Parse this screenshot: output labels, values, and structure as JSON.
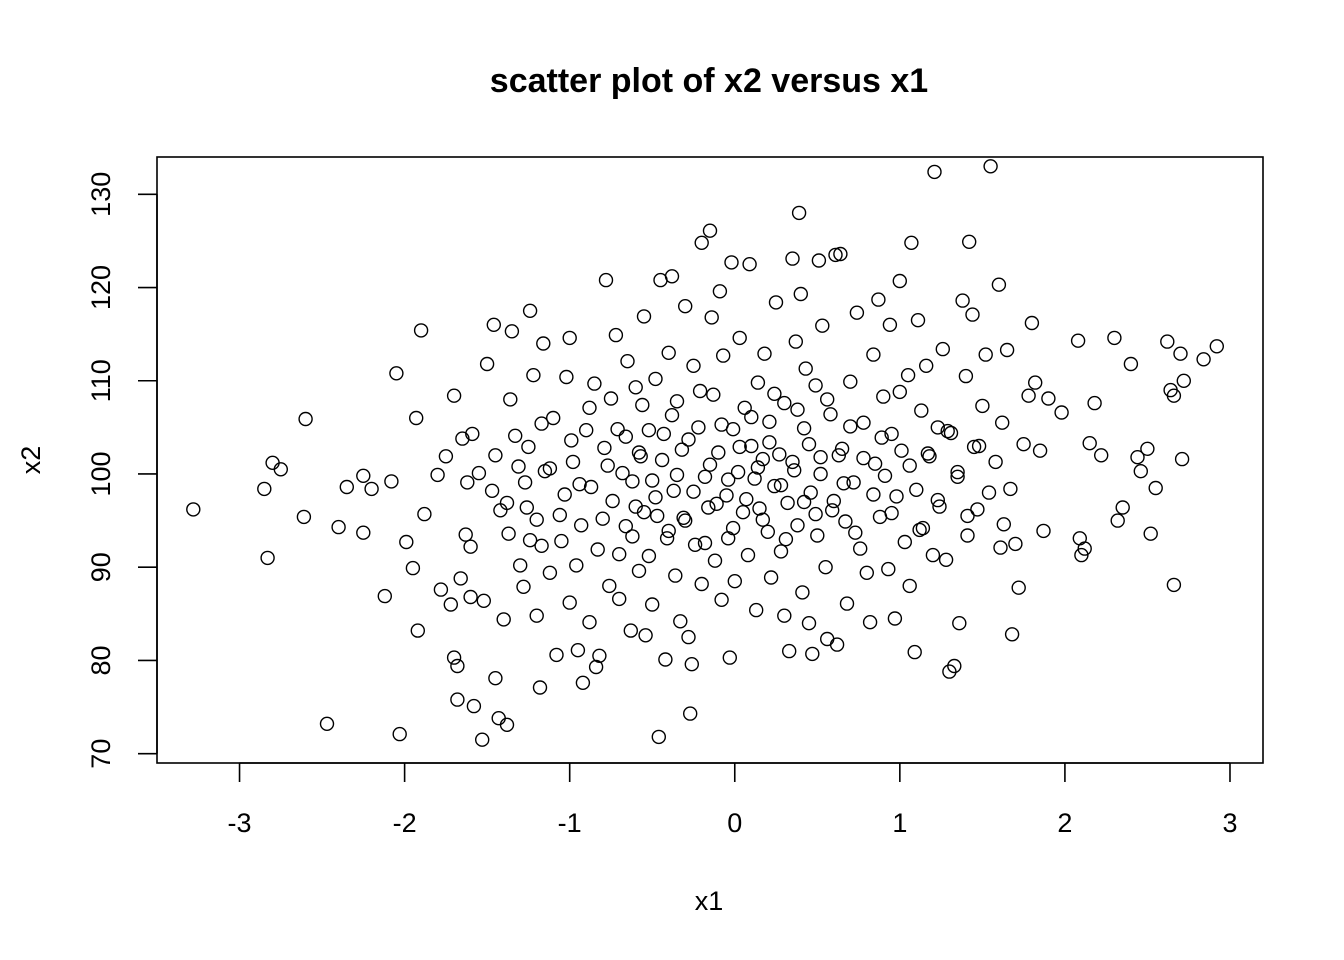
{
  "chart_data": {
    "type": "scatter",
    "title": "scatter plot of x2 versus x1",
    "xlabel": "x1",
    "ylabel": "x2",
    "xlim": [
      -3.5,
      3.2
    ],
    "ylim": [
      69,
      134
    ],
    "xticks": [
      -3,
      -2,
      -1,
      0,
      1,
      2,
      3
    ],
    "yticks": [
      70,
      80,
      90,
      100,
      110,
      120,
      130
    ],
    "marker": "open-circle",
    "grid": false,
    "legend": "none",
    "points": [
      [
        -3.28,
        96.2
      ],
      [
        -2.85,
        98.4
      ],
      [
        -2.8,
        101.2
      ],
      [
        -2.75,
        100.5
      ],
      [
        -2.83,
        91.0
      ],
      [
        -2.6,
        105.9
      ],
      [
        -2.61,
        95.4
      ],
      [
        -2.47,
        73.2
      ],
      [
        -2.4,
        94.3
      ],
      [
        -2.35,
        98.6
      ],
      [
        -2.25,
        99.8
      ],
      [
        -2.25,
        93.7
      ],
      [
        -2.2,
        98.4
      ],
      [
        -2.12,
        86.9
      ],
      [
        -2.08,
        99.2
      ],
      [
        -2.05,
        110.8
      ],
      [
        -2.03,
        72.1
      ],
      [
        -1.99,
        92.7
      ],
      [
        -1.95,
        89.9
      ],
      [
        -1.93,
        106.0
      ],
      [
        -1.92,
        83.2
      ],
      [
        -1.9,
        115.4
      ],
      [
        -1.88,
        95.7
      ],
      [
        -1.8,
        99.9
      ],
      [
        -1.78,
        87.6
      ],
      [
        -1.75,
        101.9
      ],
      [
        -1.72,
        86.0
      ],
      [
        -1.7,
        80.3
      ],
      [
        -1.7,
        108.4
      ],
      [
        -1.68,
        79.4
      ],
      [
        -1.68,
        75.8
      ],
      [
        -1.66,
        88.8
      ],
      [
        -1.65,
        103.8
      ],
      [
        -1.63,
        93.5
      ],
      [
        -1.62,
        99.1
      ],
      [
        -1.6,
        86.8
      ],
      [
        -1.6,
        92.2
      ],
      [
        -1.59,
        104.3
      ],
      [
        -1.58,
        75.1
      ],
      [
        -1.55,
        100.1
      ],
      [
        -1.53,
        71.5
      ],
      [
        -1.52,
        86.4
      ],
      [
        -1.5,
        111.8
      ],
      [
        -1.47,
        98.2
      ],
      [
        -1.46,
        116.0
      ],
      [
        -1.45,
        78.1
      ],
      [
        -1.43,
        73.8
      ],
      [
        -1.42,
        96.1
      ],
      [
        -1.4,
        84.4
      ],
      [
        -1.38,
        73.1
      ],
      [
        -1.37,
        93.6
      ],
      [
        -1.36,
        108.0
      ],
      [
        -1.35,
        115.3
      ],
      [
        -1.33,
        104.1
      ],
      [
        -1.3,
        90.2
      ],
      [
        -1.28,
        87.9
      ],
      [
        -1.27,
        99.1
      ],
      [
        -1.26,
        96.4
      ],
      [
        -1.25,
        102.9
      ],
      [
        -1.24,
        117.5
      ],
      [
        -1.22,
        110.6
      ],
      [
        -1.2,
        84.8
      ],
      [
        -1.2,
        95.1
      ],
      [
        -1.18,
        77.1
      ],
      [
        -1.17,
        92.3
      ],
      [
        -1.16,
        114.0
      ],
      [
        -1.15,
        100.3
      ],
      [
        -1.12,
        89.4
      ],
      [
        -1.1,
        106.0
      ],
      [
        -1.08,
        80.6
      ],
      [
        -1.05,
        92.8
      ],
      [
        -1.03,
        97.8
      ],
      [
        -1.02,
        110.4
      ],
      [
        -1.0,
        114.6
      ],
      [
        -1.0,
        86.2
      ],
      [
        -0.98,
        101.3
      ],
      [
        -0.96,
        90.2
      ],
      [
        -0.95,
        81.1
      ],
      [
        -0.93,
        94.5
      ],
      [
        -0.92,
        77.6
      ],
      [
        -0.9,
        104.7
      ],
      [
        -0.88,
        84.1
      ],
      [
        -0.87,
        98.6
      ],
      [
        -0.85,
        109.7
      ],
      [
        -0.84,
        79.3
      ],
      [
        -0.82,
        80.5
      ],
      [
        -0.8,
        95.2
      ],
      [
        -0.79,
        102.8
      ],
      [
        -0.78,
        120.8
      ],
      [
        -0.76,
        88.0
      ],
      [
        -0.75,
        108.1
      ],
      [
        -0.74,
        97.1
      ],
      [
        -0.72,
        114.9
      ],
      [
        -0.7,
        91.4
      ],
      [
        -0.7,
        86.6
      ],
      [
        -0.68,
        100.1
      ],
      [
        -0.66,
        104.0
      ],
      [
        -0.65,
        112.1
      ],
      [
        -0.63,
        83.2
      ],
      [
        -0.62,
        93.3
      ],
      [
        -0.6,
        96.5
      ],
      [
        -0.58,
        89.6
      ],
      [
        -0.57,
        101.9
      ],
      [
        -0.56,
        107.4
      ],
      [
        -0.55,
        116.9
      ],
      [
        -0.54,
        82.7
      ],
      [
        -0.52,
        91.2
      ],
      [
        -0.5,
        99.3
      ],
      [
        -0.5,
        86.0
      ],
      [
        -0.48,
        110.2
      ],
      [
        -0.47,
        95.5
      ],
      [
        -0.46,
        71.8
      ],
      [
        -0.45,
        120.8
      ],
      [
        -0.43,
        104.3
      ],
      [
        -0.42,
        80.1
      ],
      [
        -0.4,
        93.9
      ],
      [
        -0.4,
        113.0
      ],
      [
        -0.38,
        121.2
      ],
      [
        -0.37,
        98.2
      ],
      [
        -0.36,
        89.1
      ],
      [
        -0.35,
        107.8
      ],
      [
        -0.33,
        84.2
      ],
      [
        -0.32,
        102.6
      ],
      [
        -0.3,
        95.0
      ],
      [
        -0.3,
        118.0
      ],
      [
        -0.28,
        82.5
      ],
      [
        -0.27,
        74.3
      ],
      [
        -0.26,
        79.6
      ],
      [
        -0.25,
        111.6
      ],
      [
        -0.24,
        92.4
      ],
      [
        -0.22,
        105.0
      ],
      [
        -0.2,
        88.2
      ],
      [
        -0.2,
        124.8
      ],
      [
        -0.18,
        99.7
      ],
      [
        -0.16,
        96.4
      ],
      [
        -0.15,
        126.1
      ],
      [
        -0.14,
        116.8
      ],
      [
        -0.13,
        108.5
      ],
      [
        -0.12,
        90.7
      ],
      [
        -0.1,
        102.3
      ],
      [
        -0.09,
        119.6
      ],
      [
        -0.08,
        86.5
      ],
      [
        -0.07,
        112.7
      ],
      [
        -0.05,
        97.7
      ],
      [
        -0.04,
        93.1
      ],
      [
        -0.03,
        80.3
      ],
      [
        -0.02,
        122.7
      ],
      [
        -0.01,
        104.8
      ],
      [
        0.0,
        88.5
      ],
      [
        0.02,
        100.2
      ],
      [
        0.03,
        114.6
      ],
      [
        0.05,
        95.9
      ],
      [
        0.06,
        107.1
      ],
      [
        0.08,
        91.3
      ],
      [
        0.09,
        122.5
      ],
      [
        0.1,
        103.0
      ],
      [
        0.12,
        99.5
      ],
      [
        0.13,
        85.4
      ],
      [
        0.14,
        109.8
      ],
      [
        0.15,
        96.3
      ],
      [
        0.17,
        101.6
      ],
      [
        0.18,
        112.9
      ],
      [
        0.2,
        93.8
      ],
      [
        0.21,
        105.6
      ],
      [
        0.22,
        88.9
      ],
      [
        0.24,
        98.7
      ],
      [
        0.25,
        118.4
      ],
      [
        0.27,
        102.1
      ],
      [
        0.28,
        91.7
      ],
      [
        0.3,
        107.6
      ],
      [
        0.3,
        84.8
      ],
      [
        0.32,
        96.9
      ],
      [
        0.33,
        81.0
      ],
      [
        0.35,
        123.1
      ],
      [
        0.36,
        100.4
      ],
      [
        0.37,
        114.2
      ],
      [
        0.38,
        94.5
      ],
      [
        0.39,
        128.0
      ],
      [
        0.4,
        119.3
      ],
      [
        0.41,
        87.3
      ],
      [
        0.42,
        104.9
      ],
      [
        0.43,
        111.3
      ],
      [
        0.45,
        84.0
      ],
      [
        0.46,
        98.0
      ],
      [
        0.47,
        80.7
      ],
      [
        0.49,
        109.5
      ],
      [
        0.5,
        93.4
      ],
      [
        0.51,
        122.9
      ],
      [
        0.52,
        101.8
      ],
      [
        0.53,
        115.9
      ],
      [
        0.55,
        90.0
      ],
      [
        0.56,
        82.3
      ],
      [
        0.58,
        106.4
      ],
      [
        0.6,
        97.1
      ],
      [
        0.61,
        123.5
      ],
      [
        0.62,
        81.7
      ],
      [
        0.64,
        123.6
      ],
      [
        0.65,
        102.7
      ],
      [
        0.67,
        94.9
      ],
      [
        0.68,
        86.1
      ],
      [
        0.7,
        109.9
      ],
      [
        0.72,
        99.1
      ],
      [
        0.74,
        117.3
      ],
      [
        0.76,
        92.0
      ],
      [
        0.78,
        105.5
      ],
      [
        0.8,
        89.4
      ],
      [
        0.82,
        84.1
      ],
      [
        0.84,
        112.8
      ],
      [
        0.85,
        101.1
      ],
      [
        0.87,
        118.7
      ],
      [
        0.88,
        95.4
      ],
      [
        0.9,
        108.3
      ],
      [
        0.91,
        99.8
      ],
      [
        0.93,
        89.8
      ],
      [
        0.94,
        116.0
      ],
      [
        0.95,
        104.3
      ],
      [
        0.97,
        84.5
      ],
      [
        0.98,
        97.6
      ],
      [
        1.0,
        120.7
      ],
      [
        1.01,
        102.5
      ],
      [
        1.03,
        92.7
      ],
      [
        1.05,
        110.6
      ],
      [
        1.06,
        88.0
      ],
      [
        1.07,
        124.8
      ],
      [
        1.09,
        80.9
      ],
      [
        1.1,
        98.3
      ],
      [
        1.11,
        116.5
      ],
      [
        1.13,
        106.8
      ],
      [
        1.14,
        94.2
      ],
      [
        1.16,
        111.6
      ],
      [
        1.18,
        101.9
      ],
      [
        1.2,
        91.3
      ],
      [
        1.21,
        132.4
      ],
      [
        1.23,
        105.0
      ],
      [
        1.24,
        96.5
      ],
      [
        1.26,
        113.4
      ],
      [
        1.28,
        90.8
      ],
      [
        1.3,
        78.8
      ],
      [
        1.31,
        104.4
      ],
      [
        1.33,
        79.4
      ],
      [
        1.35,
        99.7
      ],
      [
        1.36,
        84.0
      ],
      [
        1.38,
        118.6
      ],
      [
        1.4,
        110.5
      ],
      [
        1.41,
        93.4
      ],
      [
        1.42,
        124.9
      ],
      [
        1.44,
        117.1
      ],
      [
        1.45,
        102.9
      ],
      [
        1.47,
        96.2
      ],
      [
        1.5,
        107.3
      ],
      [
        1.52,
        112.8
      ],
      [
        1.55,
        133.0
      ],
      [
        1.58,
        101.3
      ],
      [
        1.6,
        120.3
      ],
      [
        1.62,
        105.5
      ],
      [
        1.63,
        94.6
      ],
      [
        1.65,
        113.3
      ],
      [
        1.67,
        98.4
      ],
      [
        1.68,
        82.8
      ],
      [
        1.7,
        92.5
      ],
      [
        1.72,
        87.8
      ],
      [
        1.75,
        103.2
      ],
      [
        1.78,
        108.4
      ],
      [
        1.8,
        116.2
      ],
      [
        1.82,
        109.8
      ],
      [
        1.85,
        102.5
      ],
      [
        1.87,
        93.9
      ],
      [
        1.9,
        108.1
      ],
      [
        1.98,
        106.6
      ],
      [
        2.08,
        114.3
      ],
      [
        2.09,
        93.1
      ],
      [
        2.1,
        91.3
      ],
      [
        2.12,
        92.0
      ],
      [
        2.15,
        103.3
      ],
      [
        2.18,
        107.6
      ],
      [
        2.22,
        102.0
      ],
      [
        2.3,
        114.6
      ],
      [
        2.32,
        95.0
      ],
      [
        2.35,
        96.4
      ],
      [
        2.4,
        111.8
      ],
      [
        2.44,
        101.8
      ],
      [
        2.46,
        100.3
      ],
      [
        2.5,
        102.7
      ],
      [
        2.52,
        93.6
      ],
      [
        2.55,
        98.5
      ],
      [
        2.62,
        114.2
      ],
      [
        2.64,
        109.0
      ],
      [
        2.66,
        108.4
      ],
      [
        2.66,
        88.1
      ],
      [
        2.7,
        112.9
      ],
      [
        2.71,
        101.6
      ],
      [
        2.72,
        110.0
      ],
      [
        2.84,
        112.3
      ],
      [
        2.92,
        113.7
      ],
      [
        -0.62,
        99.2
      ],
      [
        -0.58,
        102.3
      ],
      [
        -0.55,
        95.9
      ],
      [
        -0.52,
        104.7
      ],
      [
        -0.48,
        97.5
      ],
      [
        -0.44,
        101.5
      ],
      [
        -0.41,
        93.1
      ],
      [
        -0.38,
        106.3
      ],
      [
        -0.35,
        99.9
      ],
      [
        -0.31,
        95.3
      ],
      [
        -0.28,
        103.7
      ],
      [
        -0.25,
        98.1
      ],
      [
        -0.21,
        108.9
      ],
      [
        -0.18,
        92.6
      ],
      [
        -0.15,
        101.0
      ],
      [
        -0.11,
        96.8
      ],
      [
        -0.08,
        105.3
      ],
      [
        -0.04,
        99.4
      ],
      [
        -0.01,
        94.2
      ],
      [
        0.03,
        102.9
      ],
      [
        0.07,
        97.3
      ],
      [
        0.1,
        106.1
      ],
      [
        0.14,
        100.7
      ],
      [
        0.17,
        95.1
      ],
      [
        0.21,
        103.4
      ],
      [
        0.24,
        108.6
      ],
      [
        0.28,
        98.8
      ],
      [
        0.31,
        93.0
      ],
      [
        0.35,
        101.3
      ],
      [
        0.38,
        106.9
      ],
      [
        0.42,
        97.0
      ],
      [
        0.45,
        103.2
      ],
      [
        0.49,
        95.7
      ],
      [
        0.52,
        100.0
      ],
      [
        0.56,
        108.0
      ],
      [
        0.59,
        96.1
      ],
      [
        0.63,
        102.0
      ],
      [
        0.66,
        99.0
      ],
      [
        0.7,
        105.1
      ],
      [
        0.73,
        93.7
      ],
      [
        -1.12,
        100.6
      ],
      [
        -1.06,
        95.6
      ],
      [
        -0.99,
        103.6
      ],
      [
        -0.94,
        98.9
      ],
      [
        -0.88,
        107.1
      ],
      [
        -0.83,
        91.9
      ],
      [
        -0.77,
        100.9
      ],
      [
        -0.71,
        104.8
      ],
      [
        -0.66,
        94.4
      ],
      [
        -0.6,
        109.3
      ],
      [
        0.78,
        101.7
      ],
      [
        0.84,
        97.8
      ],
      [
        0.89,
        103.9
      ],
      [
        0.95,
        95.8
      ],
      [
        1.0,
        108.8
      ],
      [
        1.06,
        100.9
      ],
      [
        1.12,
        94.0
      ],
      [
        1.17,
        102.2
      ],
      [
        1.23,
        97.2
      ],
      [
        1.29,
        104.6
      ],
      [
        -1.45,
        102.0
      ],
      [
        -1.38,
        96.9
      ],
      [
        -1.31,
        100.8
      ],
      [
        -1.24,
        92.9
      ],
      [
        -1.17,
        105.4
      ],
      [
        1.35,
        100.2
      ],
      [
        1.41,
        95.5
      ],
      [
        1.48,
        103.0
      ],
      [
        1.54,
        98.0
      ],
      [
        1.61,
        92.1
      ]
    ]
  }
}
